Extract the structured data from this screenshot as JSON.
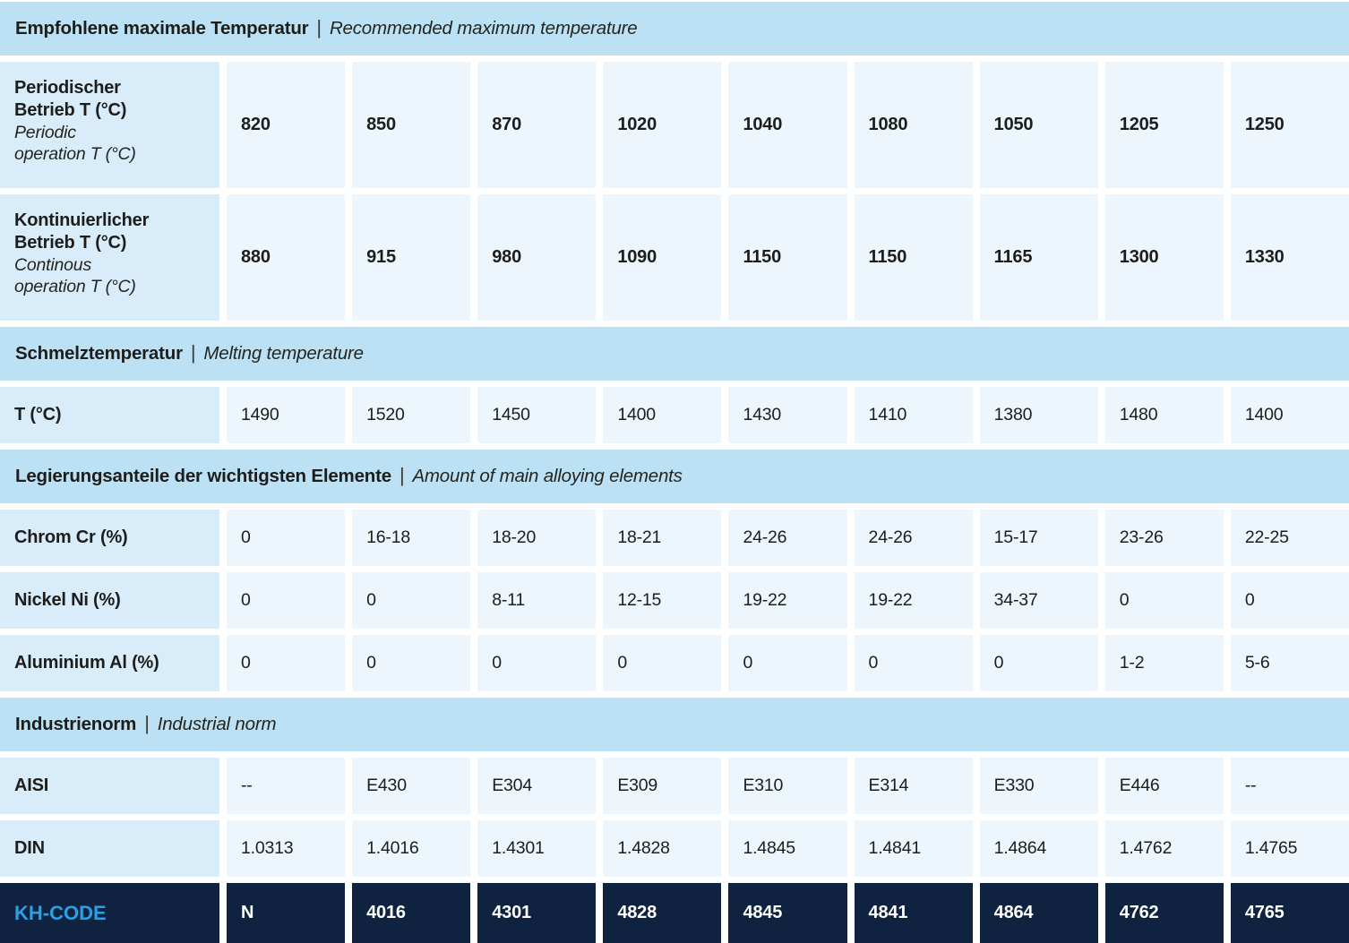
{
  "meta": {
    "separator": "|"
  },
  "colors": {
    "band_bg": "#bce1f4",
    "label_cell_bg": "#d8ecf9",
    "data_cell_bg": "#edf6fd",
    "dark_row_bg": "#0f2340",
    "kh_code_label": "#2e9fe3",
    "text": "#1d1d1b",
    "dark_row_text": "#ffffff"
  },
  "table": {
    "columns": 9,
    "sections": [
      {
        "kind": "band",
        "title_de": "Empfohlene maximale Temperatur",
        "title_en": "Recommended maximum temperature"
      },
      {
        "kind": "row",
        "size": "tall",
        "value_style": "bold",
        "label_de_lines": [
          "Periodischer",
          "Betrieb T (°C)"
        ],
        "label_en_lines": [
          "Periodic",
          "operation T (°C)"
        ],
        "values": [
          "820",
          "850",
          "870",
          "1020",
          "1040",
          "1080",
          "1050",
          "1205",
          "1250"
        ]
      },
      {
        "kind": "row",
        "size": "tall",
        "value_style": "bold",
        "label_de_lines": [
          "Kontinuierlicher",
          "Betrieb T (°C)"
        ],
        "label_en_lines": [
          "Continous",
          "operation T (°C)"
        ],
        "values": [
          "880",
          "915",
          "980",
          "1090",
          "1150",
          "1150",
          "1165",
          "1300",
          "1330"
        ]
      },
      {
        "kind": "band",
        "title_de": "Schmelztemperatur",
        "title_en": "Melting temperature"
      },
      {
        "kind": "row",
        "size": "normal",
        "value_style": "regular",
        "label_de_lines": [
          "T (°C)"
        ],
        "label_en_lines": [],
        "values": [
          "1490",
          "1520",
          "1450",
          "1400",
          "1430",
          "1410",
          "1380",
          "1480",
          "1400"
        ]
      },
      {
        "kind": "band",
        "title_de": "Legierungsanteile der wichtigsten Elemente",
        "title_en": "Amount of main alloying elements"
      },
      {
        "kind": "row",
        "size": "normal",
        "value_style": "regular",
        "label_de_lines": [
          "Chrom Cr (%)"
        ],
        "label_en_lines": [],
        "values": [
          "0",
          "16-18",
          "18-20",
          "18-21",
          "24-26",
          "24-26",
          "15-17",
          "23-26",
          "22-25"
        ]
      },
      {
        "kind": "row",
        "size": "normal",
        "value_style": "regular",
        "label_de_lines": [
          "Nickel Ni (%)"
        ],
        "label_en_lines": [],
        "values": [
          "0",
          "0",
          "8-11",
          "12-15",
          "19-22",
          "19-22",
          "34-37",
          "0",
          "0"
        ]
      },
      {
        "kind": "row",
        "size": "normal",
        "value_style": "regular",
        "label_de_lines": [
          "Aluminium Al (%)"
        ],
        "label_en_lines": [],
        "values": [
          "0",
          "0",
          "0",
          "0",
          "0",
          "0",
          "0",
          "1-2",
          "5-6"
        ]
      },
      {
        "kind": "band",
        "title_de": "Industrienorm",
        "title_en": "Industrial norm"
      },
      {
        "kind": "row",
        "size": "normal",
        "value_style": "regular",
        "label_de_lines": [
          "AISI"
        ],
        "label_en_lines": [],
        "values": [
          "--",
          "E430",
          "E304",
          "E309",
          "E310",
          "E314",
          "E330",
          "E446",
          "--"
        ]
      },
      {
        "kind": "row",
        "size": "normal",
        "value_style": "regular",
        "label_de_lines": [
          "DIN"
        ],
        "label_en_lines": [],
        "values": [
          "1.0313",
          "1.4016",
          "1.4301",
          "1.4828",
          "1.4845",
          "1.4841",
          "1.4864",
          "1.4762",
          "1.4765"
        ]
      },
      {
        "kind": "row",
        "size": "last",
        "value_style": "bold",
        "theme": "dark",
        "label_de_lines": [
          "KH-CODE"
        ],
        "label_en_lines": [],
        "values": [
          "N",
          "4016",
          "4301",
          "4828",
          "4845",
          "4841",
          "4864",
          "4762",
          "4765"
        ]
      }
    ]
  }
}
